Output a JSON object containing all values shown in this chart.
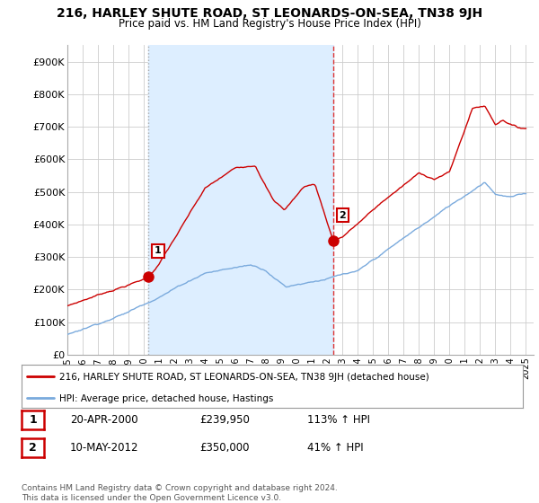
{
  "title": "216, HARLEY SHUTE ROAD, ST LEONARDS-ON-SEA, TN38 9JH",
  "subtitle": "Price paid vs. HM Land Registry's House Price Index (HPI)",
  "ylabel_ticks": [
    "£0",
    "£100K",
    "£200K",
    "£300K",
    "£400K",
    "£500K",
    "£600K",
    "£700K",
    "£800K",
    "£900K"
  ],
  "ytick_vals": [
    0,
    100000,
    200000,
    300000,
    400000,
    500000,
    600000,
    700000,
    800000,
    900000
  ],
  "ylim": [
    0,
    950000
  ],
  "xlim_left": 1995,
  "xlim_right": 2025.5,
  "sale1_year": 2000.3,
  "sale1_price": 239950,
  "sale2_year": 2012.37,
  "sale2_price": 350000,
  "legend_red": "216, HARLEY SHUTE ROAD, ST LEONARDS-ON-SEA, TN38 9JH (detached house)",
  "legend_blue": "HPI: Average price, detached house, Hastings",
  "table_row1": [
    "1",
    "20-APR-2000",
    "£239,950",
    "113% ↑ HPI"
  ],
  "table_row2": [
    "2",
    "10-MAY-2012",
    "£350,000",
    "41% ↑ HPI"
  ],
  "footer": "Contains HM Land Registry data © Crown copyright and database right 2024.\nThis data is licensed under the Open Government Licence v3.0.",
  "red_color": "#cc0000",
  "blue_color": "#7aaadd",
  "shade_color": "#ddeeff",
  "grid_color": "#cccccc",
  "vline1_color": "#aaaaaa",
  "vline2_color": "#dd3333"
}
